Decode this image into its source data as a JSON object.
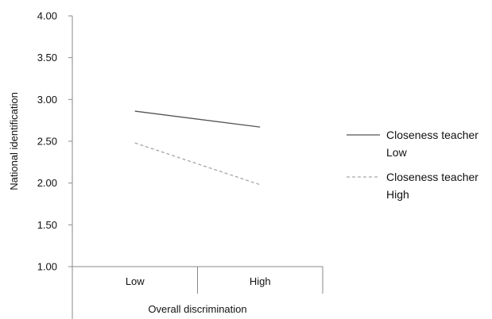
{
  "chart_data": {
    "type": "line",
    "title": "",
    "xlabel": "Overall discrimination",
    "ylabel": "National identification",
    "categories": [
      "Low",
      "High"
    ],
    "y_ticks": [
      "1.00",
      "1.50",
      "2.00",
      "2.50",
      "3.00",
      "3.50",
      "4.00"
    ],
    "ylim": [
      1.0,
      4.0
    ],
    "grid": false,
    "legend_position": "right",
    "series": [
      {
        "name_lines": [
          "Closeness teacher",
          "Low"
        ],
        "values": [
          2.86,
          2.67
        ],
        "color": "#555555",
        "dash": "solid"
      },
      {
        "name_lines": [
          "Closeness teacher",
          "High"
        ],
        "values": [
          2.48,
          1.98
        ],
        "color": "#a6a6a6",
        "dash": "dashed"
      }
    ]
  }
}
